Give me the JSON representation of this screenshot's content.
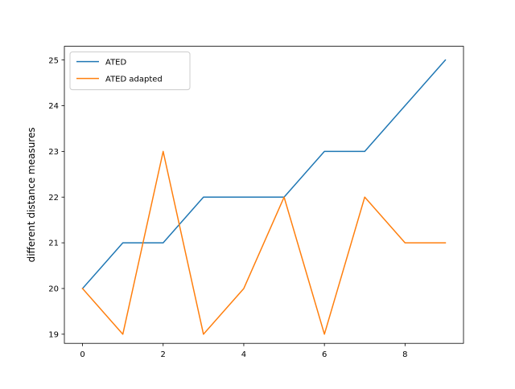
{
  "chart_data": {
    "type": "line",
    "title": "",
    "xlabel": "",
    "ylabel": "different distance measures",
    "x": [
      0,
      1,
      2,
      3,
      4,
      5,
      6,
      7,
      8,
      9
    ],
    "xlim": [
      -0.45,
      9.45
    ],
    "ylim": [
      18.8,
      25.3
    ],
    "xticks": [
      0,
      2,
      4,
      6,
      8
    ],
    "yticks": [
      19,
      20,
      21,
      22,
      23,
      24,
      25
    ],
    "grid": false,
    "legend_position": "top-left",
    "series": [
      {
        "name": "ATED",
        "color": "#1f77b4",
        "values": [
          20,
          21,
          21,
          22,
          22,
          22,
          23,
          23,
          24,
          25
        ]
      },
      {
        "name": "ATED adapted",
        "color": "#ff7f0e",
        "values": [
          20,
          19,
          23,
          19,
          20,
          22,
          19,
          22,
          21,
          21
        ]
      }
    ]
  }
}
